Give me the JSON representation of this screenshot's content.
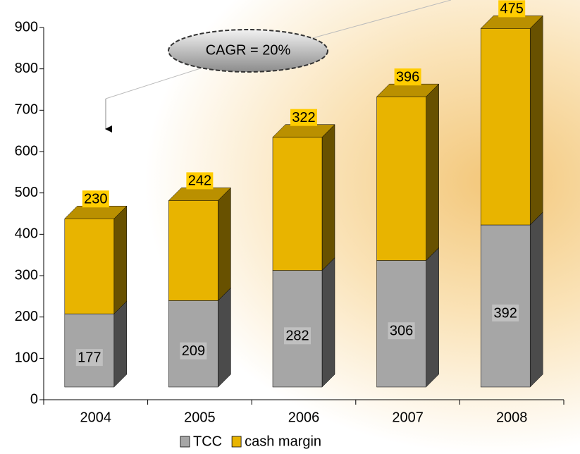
{
  "chart_data": {
    "type": "bar3d-stacked",
    "annotation": "CAGR = 20%",
    "categories": [
      "2004",
      "2005",
      "2006",
      "2007",
      "2008"
    ],
    "series": [
      {
        "name": "TCC",
        "color": "#a6a6a6",
        "values": [
          177,
          209,
          282,
          306,
          392
        ]
      },
      {
        "name": "cash margin",
        "color": "#e8b400",
        "values": [
          230,
          242,
          322,
          396,
          475
        ]
      }
    ],
    "ylim": [
      0,
      900
    ],
    "yticks": [
      0,
      100,
      200,
      300,
      400,
      500,
      600,
      700,
      800,
      900
    ],
    "legend": "bottom"
  }
}
